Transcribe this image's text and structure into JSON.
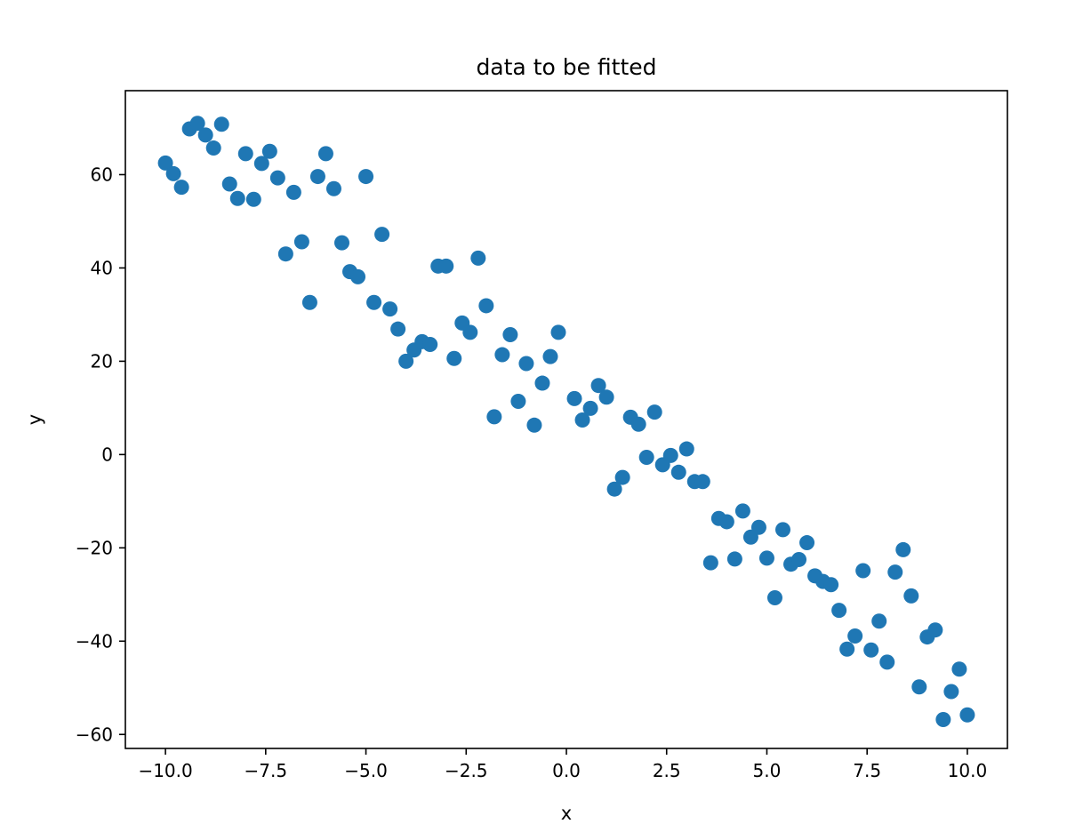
{
  "chart_data": {
    "type": "scatter",
    "title": "data to be fitted",
    "xlabel": "x",
    "ylabel": "y",
    "xlim": [
      -11.0,
      11.0
    ],
    "ylim": [
      -63,
      78
    ],
    "xticks": [
      -10.0,
      -7.5,
      -5.0,
      -2.5,
      0.0,
      2.5,
      5.0,
      7.5,
      10.0
    ],
    "xtick_labels": [
      "−10.0",
      "−7.5",
      "−5.0",
      "−2.5",
      "0.0",
      "2.5",
      "5.0",
      "7.5",
      "10.0"
    ],
    "yticks": [
      -60,
      -40,
      -20,
      0,
      20,
      40,
      60
    ],
    "ytick_labels": [
      "−60",
      "−40",
      "−20",
      "0",
      "20",
      "40",
      "60"
    ],
    "grid": false,
    "marker_color": "#1f77b4",
    "points": [
      [
        -10.0,
        62.5
      ],
      [
        -9.8,
        60.2
      ],
      [
        -9.6,
        57.3
      ],
      [
        -9.4,
        69.8
      ],
      [
        -9.2,
        71.0
      ],
      [
        -9.0,
        68.5
      ],
      [
        -8.8,
        65.7
      ],
      [
        -8.6,
        70.8
      ],
      [
        -8.4,
        58.0
      ],
      [
        -8.2,
        54.9
      ],
      [
        -8.0,
        64.5
      ],
      [
        -7.8,
        54.7
      ],
      [
        -7.6,
        62.4
      ],
      [
        -7.4,
        65.0
      ],
      [
        -7.2,
        59.3
      ],
      [
        -7.0,
        43.0
      ],
      [
        -6.8,
        56.2
      ],
      [
        -6.6,
        45.6
      ],
      [
        -6.4,
        32.6
      ],
      [
        -6.2,
        59.6
      ],
      [
        -6.0,
        64.5
      ],
      [
        -5.8,
        57.0
      ],
      [
        -5.6,
        45.4
      ],
      [
        -5.4,
        39.2
      ],
      [
        -5.2,
        38.1
      ],
      [
        -5.0,
        59.6
      ],
      [
        -4.8,
        32.6
      ],
      [
        -4.6,
        47.2
      ],
      [
        -4.4,
        31.2
      ],
      [
        -4.2,
        26.9
      ],
      [
        -4.0,
        20.0
      ],
      [
        -3.8,
        22.4
      ],
      [
        -3.6,
        24.2
      ],
      [
        -3.4,
        23.6
      ],
      [
        -3.2,
        40.4
      ],
      [
        -3.0,
        40.4
      ],
      [
        -2.8,
        20.6
      ],
      [
        -2.6,
        28.2
      ],
      [
        -2.4,
        26.2
      ],
      [
        -2.2,
        42.1
      ],
      [
        -2.0,
        31.9
      ],
      [
        -1.8,
        8.1
      ],
      [
        -1.6,
        21.4
      ],
      [
        -1.4,
        25.7
      ],
      [
        -1.2,
        11.4
      ],
      [
        -1.0,
        19.5
      ],
      [
        -0.8,
        6.3
      ],
      [
        -0.6,
        15.3
      ],
      [
        -0.4,
        21.0
      ],
      [
        -0.2,
        26.2
      ],
      [
        0.2,
        12.0
      ],
      [
        0.4,
        7.4
      ],
      [
        0.6,
        9.9
      ],
      [
        0.8,
        14.8
      ],
      [
        1.0,
        12.3
      ],
      [
        1.2,
        -7.4
      ],
      [
        1.4,
        -4.9
      ],
      [
        1.6,
        8.0
      ],
      [
        1.8,
        6.5
      ],
      [
        2.0,
        -0.6
      ],
      [
        2.2,
        9.1
      ],
      [
        2.4,
        -2.2
      ],
      [
        2.6,
        -0.2
      ],
      [
        2.8,
        -3.8
      ],
      [
        3.0,
        1.2
      ],
      [
        3.2,
        -5.8
      ],
      [
        3.4,
        -5.8
      ],
      [
        3.6,
        -23.2
      ],
      [
        3.8,
        -13.7
      ],
      [
        4.0,
        -14.4
      ],
      [
        4.2,
        -22.4
      ],
      [
        4.4,
        -12.1
      ],
      [
        4.6,
        -17.7
      ],
      [
        4.8,
        -15.6
      ],
      [
        5.0,
        -22.2
      ],
      [
        5.2,
        -30.7
      ],
      [
        5.4,
        -16.1
      ],
      [
        5.6,
        -23.5
      ],
      [
        5.8,
        -22.5
      ],
      [
        6.0,
        -18.9
      ],
      [
        6.2,
        -26.0
      ],
      [
        6.4,
        -27.2
      ],
      [
        6.6,
        -27.9
      ],
      [
        6.8,
        -33.4
      ],
      [
        7.0,
        -41.7
      ],
      [
        7.2,
        -38.9
      ],
      [
        7.4,
        -24.9
      ],
      [
        7.6,
        -41.9
      ],
      [
        7.8,
        -35.7
      ],
      [
        8.0,
        -44.5
      ],
      [
        8.2,
        -25.2
      ],
      [
        8.4,
        -20.4
      ],
      [
        8.6,
        -30.3
      ],
      [
        8.8,
        -49.8
      ],
      [
        9.0,
        -39.1
      ],
      [
        9.2,
        -37.6
      ],
      [
        9.4,
        -56.8
      ],
      [
        9.6,
        -50.8
      ],
      [
        9.8,
        -46.0
      ],
      [
        10.0,
        -55.8
      ]
    ]
  }
}
